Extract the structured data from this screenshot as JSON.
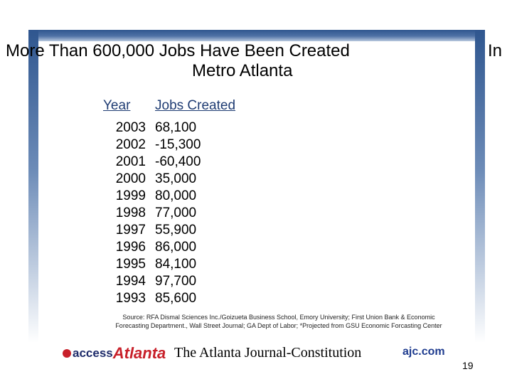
{
  "title": {
    "line1": "More Than 600,000 Jobs Have Been Created",
    "line1_suffix": "In",
    "line2": "Metro Atlanta"
  },
  "table": {
    "headers": {
      "year": "Year",
      "jobs": "Jobs Created"
    },
    "rows": [
      {
        "year": "2003",
        "jobs": "68,100"
      },
      {
        "year": "2002",
        "jobs": "-15,300"
      },
      {
        "year": "2001",
        "jobs": "-60,400"
      },
      {
        "year": "2000",
        "jobs": "35,000"
      },
      {
        "year": "1999",
        "jobs": "80,000"
      },
      {
        "year": "1998",
        "jobs": "77,000"
      },
      {
        "year": "1997",
        "jobs": "55,900"
      },
      {
        "year": "1996",
        "jobs": "86,000"
      },
      {
        "year": "1995",
        "jobs": "84,100"
      },
      {
        "year": "1994",
        "jobs": "97,700"
      },
      {
        "year": "1993",
        "jobs": "85,600"
      }
    ]
  },
  "source": {
    "line1": "Source: RFA Dismal Sciences Inc./Goizueta Business School, Emory University; First Union Bank & Economic",
    "line2": "Forecasting Department., Wall Street Journal; GA Dept of Labor; *Projected from GSU Economic Forcasting Center"
  },
  "footer": {
    "access_logo_text": "access",
    "access_logo_big": "Atlanta",
    "ajc_logo": "The Atlanta Journal-Constitution",
    "web_logo": "ajc.com",
    "page_number": "19"
  },
  "colors": {
    "frame": "#2f568f",
    "header_text": "#1f3c73",
    "accent_red": "#c8202a"
  }
}
